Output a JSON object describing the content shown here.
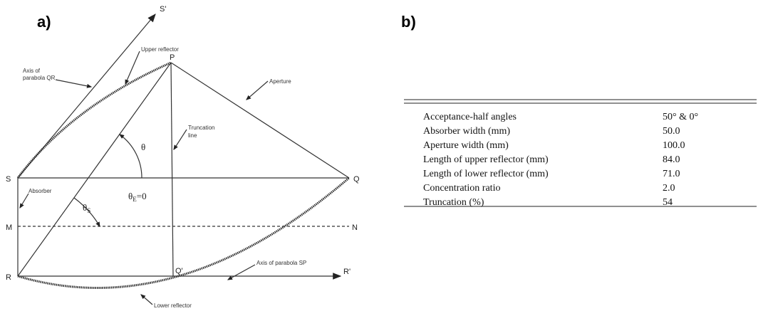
{
  "diagram": {
    "panel_label": "a)",
    "points": {
      "S_prime": "S'",
      "P": "P",
      "S": "S",
      "Q": "Q",
      "M": "M",
      "N": "N",
      "R": "R",
      "Q_prime": "Q'",
      "R_prime": "R'"
    },
    "annotations": {
      "axis_qr": [
        "Axis of",
        "parabola QR"
      ],
      "upper_reflector": "Upper reflector",
      "aperture": "Aperture",
      "truncation_line": [
        "Truncation",
        "line"
      ],
      "absorber": "Absorber",
      "axis_sp": "Axis of parabola SP",
      "lower_reflector": "Lower reflector"
    },
    "angles": {
      "theta": "θ",
      "theta_s": {
        "symbol": "θ",
        "sub": "S"
      },
      "theta_e": {
        "symbol": "θ",
        "sub": "E",
        "rest": "=0"
      }
    }
  },
  "table": {
    "panel_label": "b)",
    "rows": [
      [
        "Acceptance-half angles",
        "50° & 0°"
      ],
      [
        "Absorber width (mm)",
        "50.0"
      ],
      [
        "Aperture width (mm)",
        "100.0"
      ],
      [
        "Length of upper reflector (mm)",
        "84.0"
      ],
      [
        "Length of lower reflector (mm)",
        "71.0"
      ],
      [
        "Concentration ratio",
        "2.0"
      ],
      [
        "Truncation (%)",
        "54"
      ]
    ]
  }
}
